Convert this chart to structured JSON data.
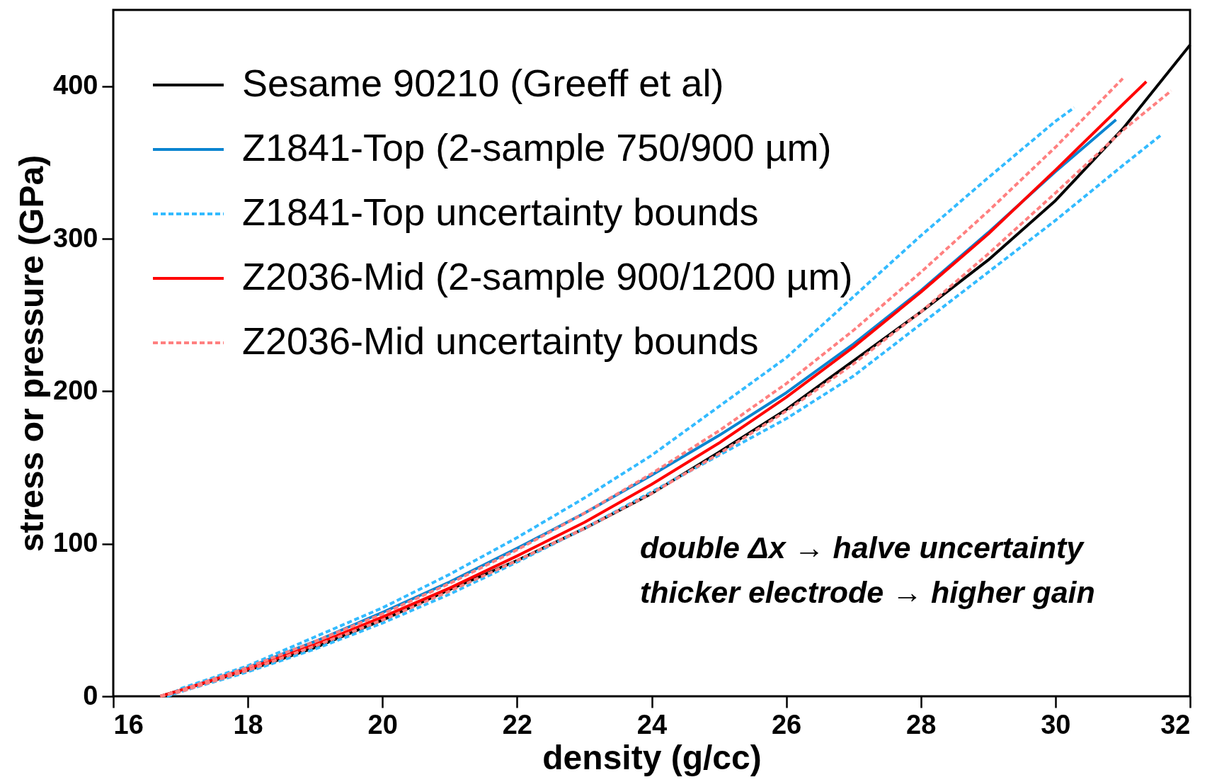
{
  "chart_data": {
    "type": "line",
    "xlabel": "density (g/cc)",
    "ylabel": "stress or pressure (GPa)",
    "annotations": [
      "double Δx → halve uncertainty",
      "thicker electrode → higher gain"
    ],
    "xlim": [
      16,
      32
    ],
    "ylim": [
      0,
      450
    ],
    "xticks": [
      16,
      18,
      20,
      22,
      24,
      26,
      28,
      30,
      32
    ],
    "yticks": [
      0,
      100,
      200,
      300,
      400
    ],
    "legend": "top left",
    "grid": false,
    "marker": "none",
    "series": [
      {
        "name": "Sesame 90210 (Greeff et al)",
        "color": "#000000",
        "line_style": "solid",
        "x": [
          16.7,
          17,
          18,
          19,
          20,
          21,
          22,
          23,
          24,
          25,
          26,
          27,
          28,
          29,
          30,
          31,
          32
        ],
        "values": [
          0,
          4,
          17,
          32,
          50,
          70,
          89,
          110,
          133,
          160,
          188,
          220,
          252,
          286,
          325,
          372,
          427
        ]
      },
      {
        "name": "Z1841-Top (2-sample 750/900 µm)",
        "color": "#0a84d0",
        "line_style": "solid",
        "x": [
          16.8,
          17,
          18,
          19,
          20,
          21,
          22,
          23,
          24,
          25,
          26,
          27,
          28,
          29,
          30,
          30.9
        ],
        "values": [
          0,
          4,
          19,
          36,
          55,
          75,
          97,
          120,
          145,
          171,
          199,
          231,
          266,
          304,
          344,
          378
        ]
      },
      {
        "name": "Z1841-Top uncertainty bounds",
        "color": "#33bbff",
        "line_style": "dashed",
        "x": [
          16.8,
          17,
          18,
          19,
          20,
          21,
          22,
          23,
          24,
          25,
          26,
          27,
          28,
          29,
          30,
          30.28
        ],
        "values": [
          0,
          5,
          20,
          39,
          58,
          80,
          104,
          130,
          158,
          190,
          222,
          262,
          302,
          340,
          377,
          386
        ]
      },
      {
        "color": "#33bbff",
        "line_style": "dashed",
        "x": [
          16.8,
          17,
          18,
          19,
          20,
          21,
          22,
          23,
          24,
          25,
          26,
          27,
          28,
          29,
          30,
          31,
          31.57
        ],
        "values": [
          0,
          3,
          16,
          31,
          48,
          67,
          88,
          110,
          134,
          158,
          182,
          210,
          244,
          278,
          312,
          348,
          368
        ]
      },
      {
        "name": "Z2036-Mid (2-sample 900/1200 µm)",
        "color": "#ff0000",
        "line_style": "solid",
        "x": [
          16.7,
          17,
          18,
          19,
          20,
          21,
          22,
          23,
          24,
          25,
          26,
          27,
          28,
          29,
          30,
          31,
          31.35
        ],
        "values": [
          0,
          4,
          18,
          34,
          52,
          71,
          92,
          114,
          139,
          166,
          196,
          229,
          265,
          303,
          345,
          388,
          403
        ]
      },
      {
        "name": "Z2036-Mid uncertainty bounds",
        "color": "#ff8080",
        "line_style": "dashed",
        "x": [
          16.7,
          17,
          18,
          19,
          20,
          21,
          22,
          23,
          24,
          25,
          26,
          27,
          28,
          29,
          30,
          31
        ],
        "values": [
          0,
          4,
          19,
          36,
          54,
          74,
          96,
          120,
          146,
          174,
          205,
          240,
          278,
          318,
          360,
          405
        ]
      },
      {
        "color": "#ff8080",
        "line_style": "dashed",
        "x": [
          16.7,
          17,
          18,
          19,
          20,
          21,
          22,
          23,
          24,
          25,
          26,
          27,
          28,
          29,
          30,
          31,
          31.72
        ],
        "values": [
          0,
          3,
          17,
          33,
          50,
          69,
          89,
          110,
          133,
          159,
          187,
          218,
          252,
          290,
          330,
          371,
          397
        ]
      }
    ]
  }
}
